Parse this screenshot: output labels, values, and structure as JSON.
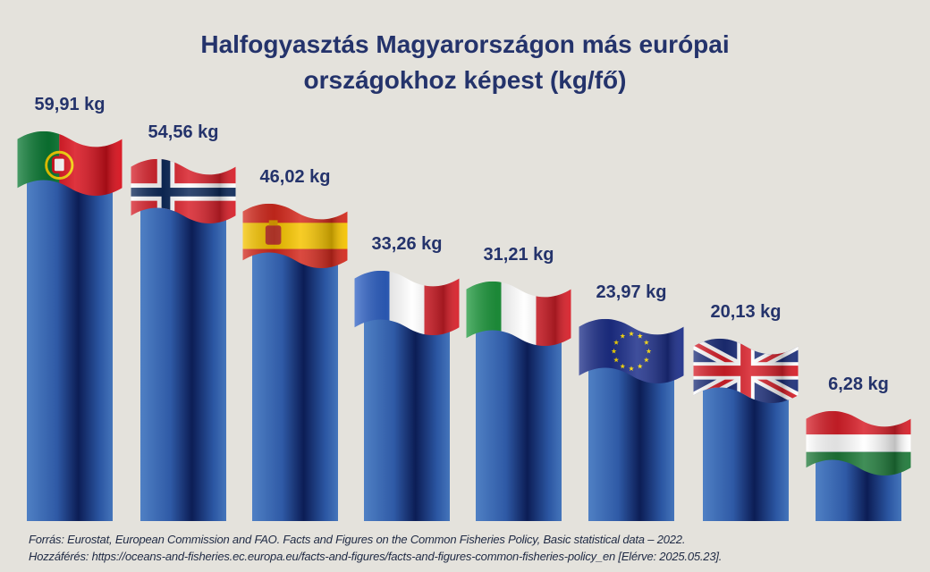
{
  "chart_data": {
    "type": "bar",
    "title": "Halfogyasztás Magyarországon más európai országokhoz képest (kg/fő)",
    "title_lines": [
      "Halfogyasztás Magyarországon más európai",
      "országokhoz képest (kg/fő)"
    ],
    "unit": "kg",
    "grid": false,
    "bar_color": "#2f5aa6",
    "label_color": "#24336b",
    "background": "#e4e2dc",
    "items": [
      {
        "flag": "portugal-flag",
        "value": 59.91,
        "label": "59,91 kg"
      },
      {
        "flag": "norway-flag",
        "value": 54.56,
        "label": "54,56 kg"
      },
      {
        "flag": "spain-flag",
        "value": 46.02,
        "label": "46,02 kg"
      },
      {
        "flag": "france-flag",
        "value": 33.26,
        "label": "33,26 kg"
      },
      {
        "flag": "italy-flag",
        "value": 31.21,
        "label": "31,21 kg"
      },
      {
        "flag": "eu-flag",
        "value": 23.97,
        "label": "23,97 kg"
      },
      {
        "flag": "uk-flag",
        "value": 20.13,
        "label": "20,13 kg"
      },
      {
        "flag": "hungary-flag",
        "value": 6.28,
        "label": "6,28 kg"
      }
    ]
  },
  "source": {
    "line1": "Forrás: Eurostat, European Commission and FAO. Facts and Figures on the Common Fisheries Policy, Basic statistical data – 2022.",
    "line2": "Hozzáférés: https://oceans-and-fisheries.ec.europa.eu/facts-and-figures/facts-and-figures-common-fisheries-policy_en [Elérve: 2025.05.23]."
  }
}
